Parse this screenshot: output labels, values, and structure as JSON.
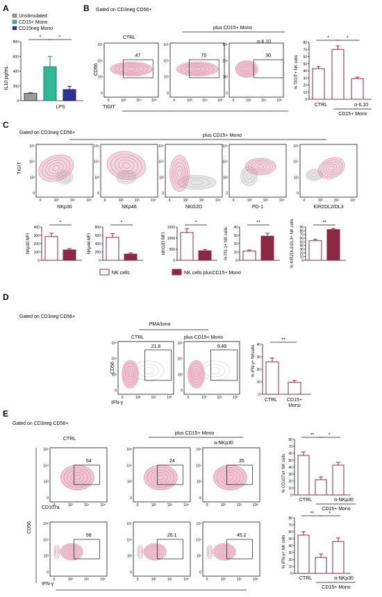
{
  "colors": {
    "grey": "#9a9a9a",
    "teal": "#2fb898",
    "navy": "#2e3192",
    "maroon": "#8a2846",
    "pink": "#d88aa6",
    "lightpink": "#f0c6d4",
    "contourgrey": "#b9b9b9"
  },
  "panelA": {
    "label": "A",
    "legend": [
      "Unstimulated",
      "CD15+  Mono",
      "CD15neg  Mono"
    ],
    "ylabel": "IL10 pg/mL",
    "yticks": [
      "0",
      "200",
      "400",
      "600",
      "800"
    ],
    "xlabel": "LPS",
    "sig": [
      "*",
      "*"
    ]
  },
  "panelB": {
    "label": "B",
    "gating": "Gated on CD3neg CD56+",
    "group": "plus CD15+ Mono",
    "plots": [
      {
        "title": "CTRL",
        "value": "47"
      },
      {
        "title": "",
        "value": "70"
      },
      {
        "title": "α-IL10",
        "value": "30"
      }
    ],
    "ylabel": "CD56",
    "xlabel": "TIGIT",
    "bar_ylabel": "% TIGIT+ NK cells",
    "bar_yticks": [
      "0",
      "10",
      "20",
      "30",
      "40",
      "50",
      "60",
      "70",
      "80"
    ],
    "bar_xlabels": [
      "CTRL",
      "α-IL10"
    ],
    "bar_group": "CD15+ Mono",
    "sig": [
      "*",
      "*"
    ]
  },
  "panelC": {
    "label": "C",
    "gating": "Gated on CD3neg CD56+",
    "group": "plus CD15+ Mono",
    "ylabel": "TIGIT",
    "xlabels": [
      "NKp30",
      "NKp46",
      "NKG2D",
      "PD-1",
      "KIR2DL2/DL3"
    ],
    "bars": [
      {
        "ylabel": "NKp30 MFI",
        "yticks": [
          "0",
          "100",
          "200",
          "300",
          "400"
        ],
        "sig": "*"
      },
      {
        "ylabel": "NKp46 MFI",
        "yticks": [
          "0",
          "200",
          "400",
          "600",
          "800"
        ],
        "sig": "*"
      },
      {
        "ylabel": "NKG2D MFI",
        "yticks": [
          "0",
          "500",
          "1000",
          "1500"
        ],
        "sig": "*"
      },
      {
        "ylabel": "% PD-1+ NK cells",
        "yticks": [
          "0",
          "10",
          "20",
          "30",
          "40"
        ],
        "sig": "**"
      },
      {
        "ylabel": "% KIR2DL2/DL3+ NK cells",
        "yticks": [
          "0",
          "10",
          "20",
          "30",
          "40",
          "50",
          "60",
          "70",
          "80",
          "90"
        ],
        "sig": "**"
      }
    ],
    "legend": [
      "NK cells",
      "NK cells plusCD15+ Mono"
    ]
  },
  "panelD": {
    "label": "D",
    "gating": "Gated on CD3neg CD56+",
    "stim": "PMA/Iono",
    "plots": [
      {
        "title": "CTRL",
        "value": "21.8"
      },
      {
        "title": "plus CD15+ Mono",
        "value": "9.49"
      }
    ],
    "ylabel": "CD56",
    "xlabel": "IFN-γ",
    "bar_ylabel": "% IFN-γ+ NKcells",
    "bar_yticks": [
      "0",
      "10",
      "20",
      "30",
      "40"
    ],
    "bar_xlabels": [
      "CTRL",
      "CD15+\nMono"
    ],
    "sig": "**"
  },
  "panelE": {
    "label": "E",
    "gating": "Gated on CD3neg CD56+",
    "group": "plus CD15+ Mono",
    "titles": [
      "CTRL",
      "",
      "α-NKp30"
    ],
    "row1_values": [
      "54",
      "24",
      "35"
    ],
    "row2_values": [
      "58",
      "26.1",
      "45.2"
    ],
    "row1_xlabel": "CD107a",
    "row2_xlabel": "IFN-γ",
    "ylabel": "CD56",
    "bar1_ylabel": "% CD107a+ NK cells",
    "bar2_ylabel": "% IFN-γ+ NK cells",
    "bar_yticks": [
      "0",
      "10",
      "20",
      "30",
      "40",
      "50",
      "60",
      "70",
      "80"
    ],
    "bar_xlabels": [
      "CTRL",
      "α-NKp30"
    ],
    "bar_group": "CD15+ Mono",
    "sig1": [
      "**",
      "*"
    ],
    "sig2": [
      "**",
      "*"
    ]
  },
  "chart_data": [
    {
      "panel": "A",
      "type": "bar",
      "categories": [
        "Unstimulated",
        "CD15+  Mono",
        "CD15neg  Mono"
      ],
      "values": [
        100,
        460,
        150
      ],
      "errors": [
        8,
        140,
        45
      ],
      "ylim": [
        0,
        800
      ],
      "ylabel": "IL10 pg/mL",
      "xlabel": "LPS"
    },
    {
      "panel": "B",
      "type": "bar",
      "categories": [
        "CTRL",
        "",
        "α-IL10"
      ],
      "values": [
        43,
        70,
        29
      ],
      "errors": [
        3,
        5,
        2
      ],
      "ylim": [
        0,
        80
      ],
      "ylabel": "% TIGIT+ NK cells"
    },
    {
      "panel": "C-NKp30",
      "type": "bar",
      "categories": [
        "NK cells",
        "NK cells plusCD15+ Mono"
      ],
      "values": [
        285,
        125
      ],
      "errors": [
        40,
        15
      ],
      "ylim": [
        0,
        400
      ],
      "ylabel": "NKp30 MFI"
    },
    {
      "panel": "C-NKp46",
      "type": "bar",
      "categories": [
        "NK cells",
        "NK cells plusCD15+ Mono"
      ],
      "values": [
        550,
        150
      ],
      "errors": [
        90,
        30
      ],
      "ylim": [
        0,
        800
      ],
      "ylabel": "NKp46 MFI"
    },
    {
      "panel": "C-NKG2D",
      "type": "bar",
      "categories": [
        "NK cells",
        "NK cells plusCD15+ Mono"
      ],
      "values": [
        1250,
        430
      ],
      "errors": [
        170,
        60
      ],
      "ylim": [
        0,
        1500
      ],
      "ylabel": "NKG2D MFI"
    },
    {
      "panel": "C-PD1",
      "type": "bar",
      "categories": [
        "NK cells",
        "NK cells plusCD15+ Mono"
      ],
      "values": [
        11,
        29
      ],
      "errors": [
        1.5,
        3.5
      ],
      "ylim": [
        0,
        40
      ],
      "ylabel": "% PD-1+ NK cells"
    },
    {
      "panel": "C-KIR",
      "type": "bar",
      "categories": [
        "NK cells",
        "NK cells plusCD15+ Mono"
      ],
      "values": [
        53,
        83
      ],
      "errors": [
        4,
        3
      ],
      "ylim": [
        0,
        90
      ],
      "ylabel": "% KIR2DL2/DL3+ NK cells"
    },
    {
      "panel": "D",
      "type": "bar",
      "categories": [
        "CTRL",
        "CD15+ Mono"
      ],
      "values": [
        26,
        9.5
      ],
      "errors": [
        3,
        1.5
      ],
      "ylim": [
        0,
        40
      ],
      "ylabel": "% IFN-γ+ NKcells"
    },
    {
      "panel": "E-CD107a",
      "type": "bar",
      "categories": [
        "CTRL",
        "",
        "α-NKp30"
      ],
      "values": [
        57,
        22,
        43
      ],
      "errors": [
        5,
        4,
        4
      ],
      "ylim": [
        0,
        80
      ],
      "ylabel": "% CD107a+ NK cells"
    },
    {
      "panel": "E-IFNg",
      "type": "bar",
      "categories": [
        "CTRL",
        "",
        "α-NKp30"
      ],
      "values": [
        55,
        23,
        46
      ],
      "errors": [
        5,
        5,
        5
      ],
      "ylim": [
        0,
        80
      ],
      "ylabel": "% IFN-γ+ NK cells"
    }
  ]
}
